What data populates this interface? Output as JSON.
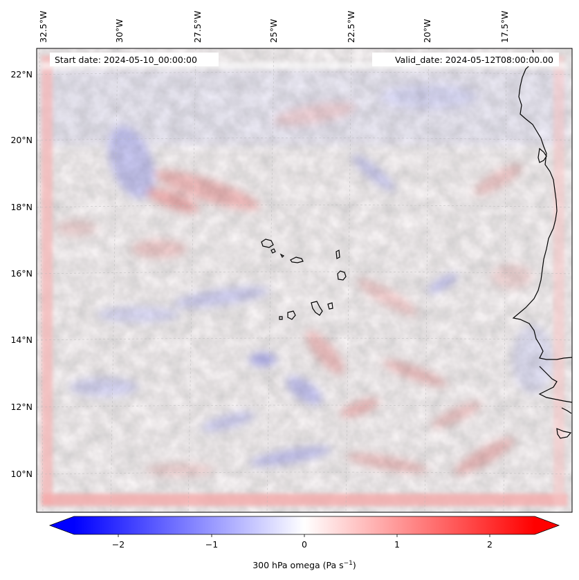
{
  "map": {
    "start_label": "Start date: 2024-05-10_00:00:00",
    "valid_label": "Valid_date: 2024-05-12T08:00:00.00",
    "lon_ticks": [
      "32.5°W",
      "30°W",
      "27.5°W",
      "25°W",
      "22.5°W",
      "20°W",
      "17.5°W"
    ],
    "lat_ticks": [
      "22°N",
      "20°N",
      "18°N",
      "16°N",
      "14°N",
      "12°N",
      "10°N"
    ],
    "gridlines": true,
    "coastline_color": "#000000"
  },
  "colorbar": {
    "label_main": "300 hPa omega (Pa s",
    "label_sup": "−1",
    "label_close": ")",
    "tick_labels": [
      "−2",
      "−1",
      "0",
      "1",
      "2"
    ],
    "range": [
      -2.6,
      2.6
    ],
    "extend": "both",
    "colormap": "bwr",
    "low_color": "#0000ff",
    "mid_color": "#ffffff",
    "high_color": "#ff0000"
  }
}
